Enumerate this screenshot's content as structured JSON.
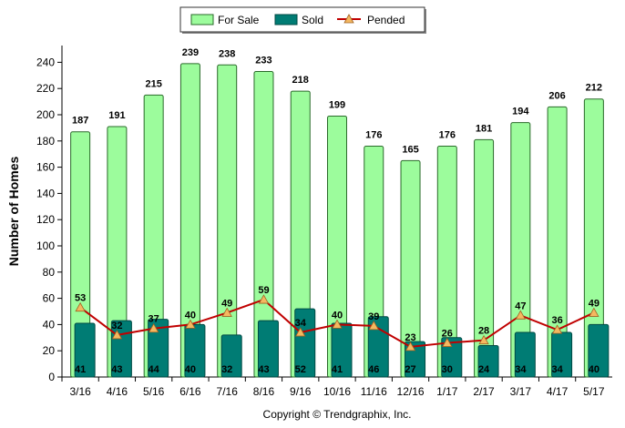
{
  "chart_data": {
    "type": "bar",
    "categories": [
      "3/16",
      "4/16",
      "5/16",
      "6/16",
      "7/16",
      "8/16",
      "9/16",
      "10/16",
      "11/16",
      "12/16",
      "1/17",
      "2/17",
      "3/17",
      "4/17",
      "5/17"
    ],
    "series": [
      {
        "name": "For Sale",
        "kind": "bar",
        "color": "#9cfc9c",
        "values": [
          187,
          191,
          215,
          239,
          238,
          233,
          218,
          199,
          176,
          165,
          176,
          181,
          194,
          206,
          212
        ]
      },
      {
        "name": "Sold",
        "kind": "bar",
        "color": "#007c74",
        "values": [
          41,
          43,
          44,
          40,
          32,
          43,
          52,
          41,
          46,
          27,
          30,
          24,
          34,
          34,
          40
        ]
      },
      {
        "name": "Pended",
        "kind": "line",
        "color": "#c00000",
        "marker_color": "#f4b860",
        "values": [
          53,
          32,
          37,
          40,
          49,
          59,
          34,
          40,
          39,
          23,
          26,
          28,
          47,
          36,
          49
        ]
      }
    ],
    "ylabel": "Number of Homes",
    "xlabel": "",
    "ylim": [
      0,
      250
    ],
    "yticks": [
      0,
      20,
      40,
      60,
      80,
      100,
      120,
      140,
      160,
      180,
      200,
      220,
      240
    ],
    "legend": {
      "placement": "top-center",
      "entries": [
        "For Sale",
        "Sold",
        "Pended"
      ]
    },
    "grid": false,
    "footer": "Copyright © Trendgraphix, Inc."
  }
}
